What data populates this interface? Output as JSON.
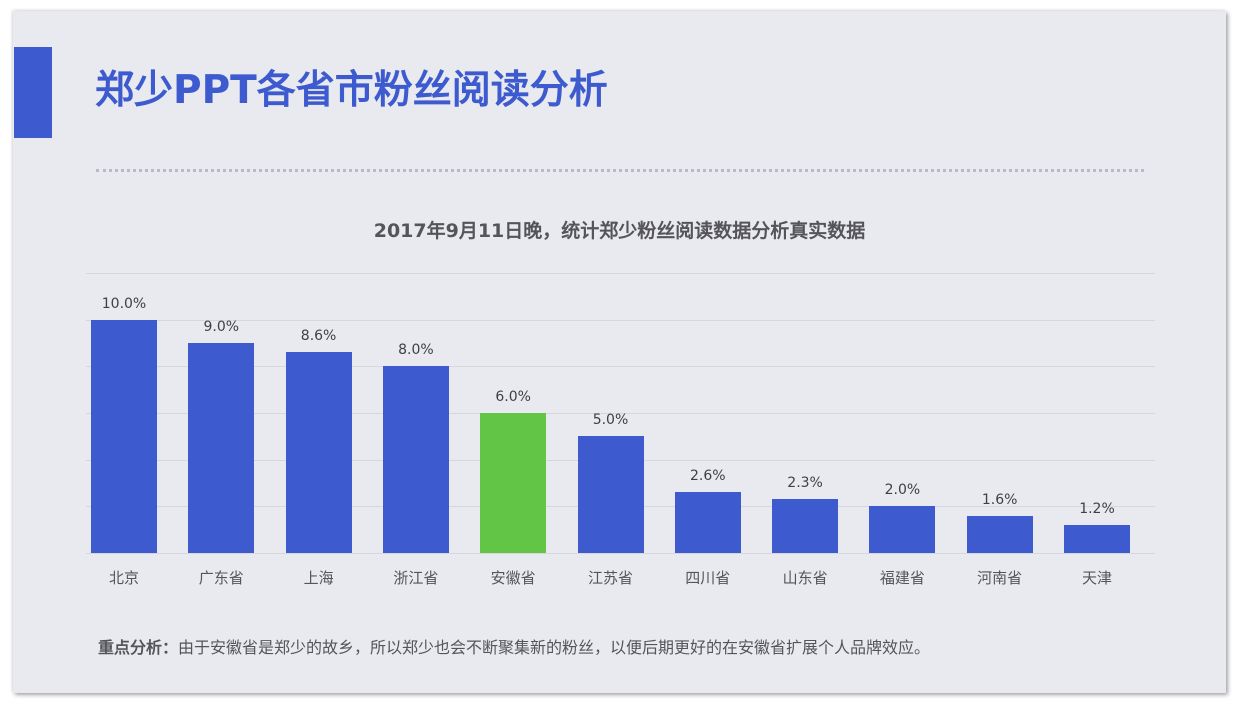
{
  "slide": {
    "title": "郑少PPT各省市粉丝阅读分析",
    "analysis_label": "重点分析：",
    "analysis_text": "由于安徽省是郑少的故乡，所以郑少也会不断聚集新的粉丝，以便后期更好的在安徽省扩展个人品牌效应。"
  },
  "colors": {
    "accent": "#3d5bcf",
    "highlight": "#62c545",
    "background": "#e9eaf0",
    "gridline": "#d6d7dd",
    "text": "#555559"
  },
  "chart_data": {
    "type": "bar",
    "title": "2017年9月11日晚，统计郑少粉丝阅读数据分析真实数据",
    "xlabel": "",
    "ylabel": "",
    "ylim": [
      0,
      12
    ],
    "grid": true,
    "gridline_step": 2,
    "legend": "none",
    "categories": [
      "北京",
      "广东省",
      "上海",
      "浙江省",
      "安徽省",
      "江苏省",
      "四川省",
      "山东省",
      "福建省",
      "河南省",
      "天津"
    ],
    "values": [
      10.0,
      9.0,
      8.6,
      8.0,
      6.0,
      5.0,
      2.6,
      2.3,
      2.0,
      1.6,
      1.2
    ],
    "value_labels": [
      "10.0%",
      "9.0%",
      "8.6%",
      "8.0%",
      "6.0%",
      "5.0%",
      "2.6%",
      "2.3%",
      "2.0%",
      "1.6%",
      "1.2%"
    ],
    "unit": "%",
    "highlighted_category": "安徽省",
    "bar_colors": [
      "#3d5bcf",
      "#3d5bcf",
      "#3d5bcf",
      "#3d5bcf",
      "#62c545",
      "#3d5bcf",
      "#3d5bcf",
      "#3d5bcf",
      "#3d5bcf",
      "#3d5bcf",
      "#3d5bcf"
    ]
  }
}
